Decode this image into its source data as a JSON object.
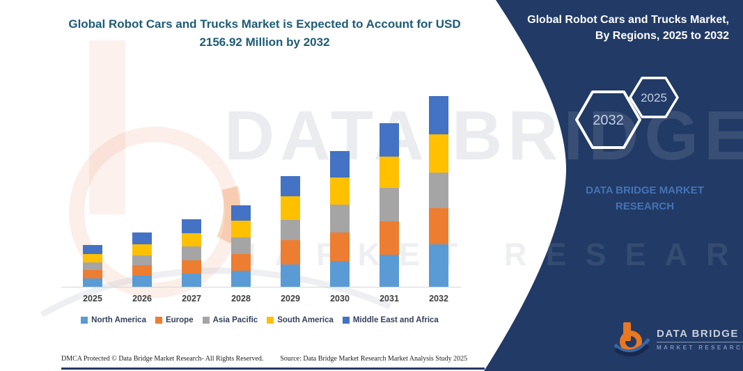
{
  "chart": {
    "title_line1": "Global Robot Cars and Trucks Market is Expected to Account for USD",
    "title_line2": "2156.92 Million by 2032"
  },
  "chart_data": {
    "type": "bar",
    "stacked": true,
    "title": "Global Robot Cars and Trucks Market is Expected to Account for USD 2156.92 Million by 2032",
    "unit": "USD Million",
    "xlabel": "",
    "ylabel": "",
    "grid": false,
    "legend_position": "bottom",
    "categories": [
      "2025",
      "2026",
      "2027",
      "2028",
      "2029",
      "2030",
      "2031",
      "2032"
    ],
    "series": [
      {
        "name": "North America",
        "color": "#5b9bd5",
        "values": [
          97,
          123,
          153,
          184,
          249,
          289,
          362,
          480
        ]
      },
      {
        "name": "Europe",
        "color": "#ed7d31",
        "values": [
          94,
          123,
          150,
          190,
          275,
          328,
          380,
          407
        ]
      },
      {
        "name": "Asia Pacific",
        "color": "#a5a5a5",
        "values": [
          84,
          105,
          153,
          184,
          231,
          309,
          380,
          407
        ]
      },
      {
        "name": "South America",
        "color": "#ffc000",
        "values": [
          92,
          126,
          150,
          190,
          267,
          307,
          354,
          432
        ]
      },
      {
        "name": "Middle East and Africa",
        "color": "#4472c4",
        "values": [
          105,
          136,
          157,
          173,
          229,
          301,
          373,
          431
        ]
      }
    ],
    "totals": [
      472,
      613,
      763,
      921,
      1251,
      1534,
      1849,
      2156.92
    ]
  },
  "panel": {
    "title_line1": "Global Robot Cars and Trucks Market,",
    "title_line2": "By Regions, 2025 to 2032",
    "hexagon_back_label": "2032",
    "hexagon_front_label": "2025",
    "brand_line1": "DATA BRIDGE MARKET",
    "brand_line2": "RESEARCH",
    "logo_title": "DATA BRIDGE",
    "logo_subtitle": "MARKET RESEARCH",
    "background_color": "#213a66"
  },
  "watermark": {
    "line1": "DATA BRIDGE",
    "line2": "MARKET RESEARCH"
  },
  "footer": {
    "dmca": "DMCA Protected © Data Bridge Market Research-  All Rights Reserved.",
    "source": "Source: Data Bridge Market Research  Market Analysis Study 2025"
  },
  "colors": {
    "title_text": "#1d5b76",
    "panel_navy": "#213a66",
    "axis_line": "#d6d6d6",
    "legend_text": "#33415c",
    "logo_orange": "#e87722",
    "brand_blue": "#4573b4"
  }
}
